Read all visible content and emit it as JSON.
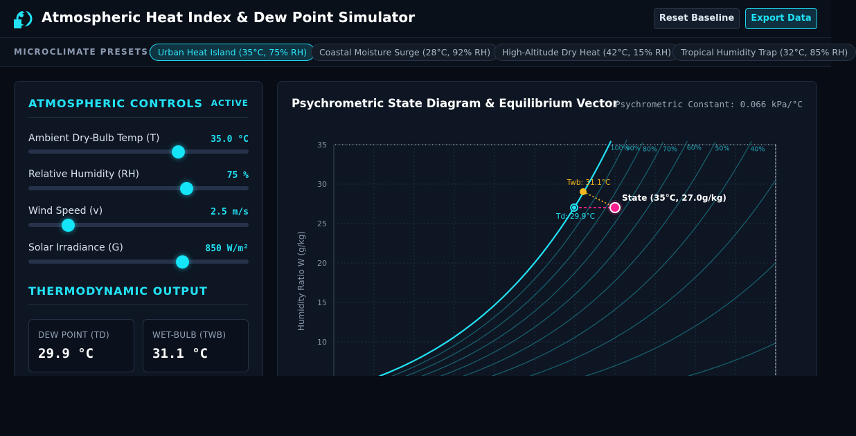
{
  "header": {
    "title": "Atmospheric Heat Index & Dew Point Simulator",
    "reset_label": "Reset Baseline",
    "export_label": "Export Data"
  },
  "presets": {
    "label": "MICROCLIMATE PRESETS:",
    "items": [
      {
        "label": "Urban Heat Island (35°C, 75% RH)",
        "active": true
      },
      {
        "label": "Coastal Moisture Surge (28°C, 92% RH)",
        "active": false
      },
      {
        "label": "High-Altitude Dry Heat (42°C, 15% RH)",
        "active": false
      },
      {
        "label": "Tropical Humidity Trap (32°C, 85% RH)",
        "active": false
      }
    ]
  },
  "controls": {
    "title": "ATMOSPHERIC CONTROLS",
    "status": "ACTIVE",
    "sliders": [
      {
        "label": "Ambient Dry-Bulb Temp (T)",
        "value": "35.0 °C",
        "fraction": 0.68
      },
      {
        "label": "Relative Humidity (RH)",
        "value": "75 %",
        "fraction": 0.72
      },
      {
        "label": "Wind Speed (v)",
        "value": "2.5 m/s",
        "fraction": 0.18
      },
      {
        "label": "Solar Irradiance (G)",
        "value": "850 W/m²",
        "fraction": 0.7
      }
    ]
  },
  "output": {
    "title": "THERMODYNAMIC OUTPUT",
    "dew_point": {
      "label": "DEW POINT (TD)",
      "value": "29.9 °C"
    },
    "wet_bulb": {
      "label": "WET-BULB (TWB)",
      "value": "31.1 °C"
    }
  },
  "chart": {
    "title": "Psychrometric State Diagram & Equilibrium Vector",
    "constant": "Psychrometric Constant: 0.066 kPa/°C",
    "colors": {
      "accent": "#22e2f5",
      "state": "#ff1f8e",
      "wetbulb": "#f5b81e"
    }
  },
  "chart_data": {
    "type": "line",
    "title": "Psychrometric State Diagram & Equilibrium Vector",
    "ylabel": "Humidity Ratio W (g/kg)",
    "xlabel": "",
    "xlim": [
      0,
      55
    ],
    "ylim": [
      6,
      36
    ],
    "yticks": [
      10,
      15,
      20,
      25,
      30,
      35
    ],
    "rh_curves": [
      {
        "rh": 100,
        "label": "100%"
      },
      {
        "rh": 90,
        "label": "90%"
      },
      {
        "rh": 80,
        "label": "80%"
      },
      {
        "rh": 70,
        "label": "70%"
      },
      {
        "rh": 60,
        "label": "60%"
      },
      {
        "rh": 50,
        "label": "50%"
      },
      {
        "rh": 40,
        "label": "40%"
      },
      {
        "rh": 30,
        "label": ""
      },
      {
        "rh": 20,
        "label": ""
      },
      {
        "rh": 10,
        "label": ""
      }
    ],
    "state": {
      "t": 35,
      "w": 27.0,
      "label": "State (35°C, 27.0g/kg)"
    },
    "dew_point": {
      "t": 29.9,
      "w": 27.0,
      "label": "Td: 29.9°C"
    },
    "wet_bulb": {
      "t": 31.1,
      "w": 29.0,
      "label": "Twb: 31.1°C"
    }
  }
}
